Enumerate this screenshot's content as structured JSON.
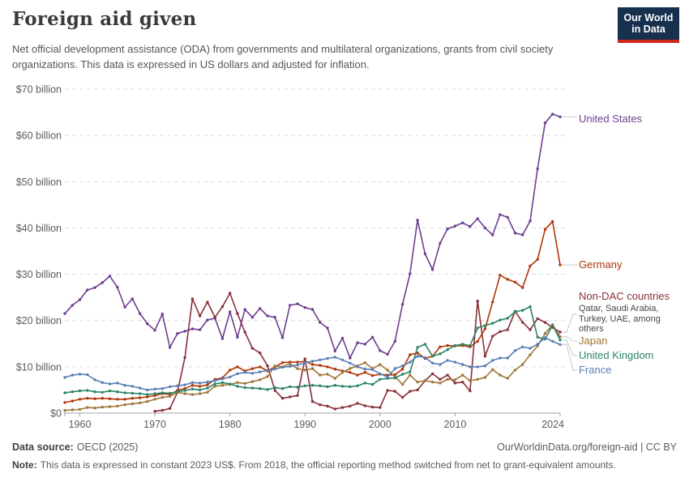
{
  "header": {
    "title": "Foreign aid given",
    "subtitle": "Net official development assistance (ODA) from governments and multilateral organizations, grants from civil society organizations. This data is expressed in US dollars and adjusted for inflation.",
    "logo": {
      "line1": "Our World",
      "line2": "in Data"
    }
  },
  "footer": {
    "source_label": "Data source:",
    "source_value": "OECD (2025)",
    "url_text": "OurWorldinData.org/foreign-aid | CC BY",
    "note_label": "Note:",
    "note_text": "This data is expressed in constant 2023 US$. From 2018, the official reporting method switched from net to grant-equivalent amounts."
  },
  "chart_data": {
    "type": "line",
    "title": "Foreign aid given",
    "xlabel": "",
    "ylabel": "",
    "ylim": [
      0,
      70
    ],
    "grid": true,
    "legend_position": "right-inline",
    "yticks": [
      0,
      10,
      20,
      30,
      40,
      50,
      60,
      70
    ],
    "ytick_labels": [
      "$0",
      "$10 billion",
      "$20 billion",
      "$30 billion",
      "$40 billion",
      "$50 billion",
      "$60 billion",
      "$70 billion"
    ],
    "xticks": [
      1960,
      1970,
      1980,
      1990,
      2000,
      2010,
      2024
    ],
    "x": [
      1958,
      1959,
      1960,
      1961,
      1962,
      1963,
      1964,
      1965,
      1966,
      1967,
      1968,
      1969,
      1970,
      1971,
      1972,
      1973,
      1974,
      1975,
      1976,
      1977,
      1978,
      1979,
      1980,
      1981,
      1982,
      1983,
      1984,
      1985,
      1986,
      1987,
      1988,
      1989,
      1990,
      1991,
      1992,
      1993,
      1994,
      1995,
      1996,
      1997,
      1998,
      1999,
      2000,
      2001,
      2002,
      2003,
      2004,
      2005,
      2006,
      2007,
      2008,
      2009,
      2010,
      2011,
      2012,
      2013,
      2014,
      2015,
      2016,
      2017,
      2018,
      2019,
      2020,
      2021,
      2022,
      2023,
      2024
    ],
    "value_unit": "billion US$ (constant 2023 prices)",
    "series": [
      {
        "name": "United States",
        "color": "#6D3E91",
        "values": [
          21.5,
          23.3,
          24.5,
          26.6,
          27.1,
          28.2,
          29.6,
          27.2,
          22.9,
          24.7,
          21.5,
          19.3,
          17.9,
          21.4,
          14.2,
          17.2,
          17.7,
          18.2,
          18.0,
          20.1,
          20.5,
          16.1,
          21.9,
          16.4,
          22.4,
          20.7,
          22.6,
          21.0,
          20.7,
          16.3,
          23.3,
          23.6,
          22.8,
          22.4,
          19.6,
          18.4,
          13.4,
          16.2,
          11.9,
          15.2,
          14.9,
          16.4,
          13.5,
          12.7,
          15.5,
          23.5,
          30.1,
          41.7,
          34.4,
          31.0,
          36.7,
          39.8,
          40.4,
          41.1,
          40.3,
          42.0,
          40.0,
          38.5,
          42.9,
          42.3,
          38.9,
          38.5,
          41.5,
          52.8,
          62.7,
          64.6,
          64.0
        ]
      },
      {
        "name": "Germany",
        "color": "#B13507",
        "values": [
          2.3,
          2.6,
          3.0,
          3.2,
          3.1,
          3.2,
          3.1,
          3.0,
          3.0,
          3.2,
          3.3,
          3.5,
          3.8,
          4.2,
          4.0,
          4.9,
          5.3,
          6.0,
          5.8,
          6.1,
          7.3,
          7.6,
          9.3,
          10.0,
          9.1,
          9.6,
          10.0,
          9.1,
          10.0,
          10.9,
          11.0,
          11.0,
          11.2,
          10.5,
          10.3,
          10.0,
          9.5,
          9.1,
          8.8,
          8.2,
          8.8,
          8.1,
          8.4,
          8.2,
          8.3,
          9.5,
          12.6,
          13.0,
          11.8,
          12.3,
          14.3,
          14.6,
          14.5,
          14.6,
          14.3,
          15.5,
          18.2,
          24.0,
          29.8,
          28.9,
          28.3,
          27.1,
          31.8,
          33.2,
          39.7,
          41.4,
          32.0
        ]
      },
      {
        "name": "Non-DAC countries",
        "color": "#883039",
        "annotation": "Qatar, Saudi Arabia, Turkey, UAE, among others",
        "values": [
          null,
          null,
          null,
          null,
          null,
          null,
          null,
          null,
          null,
          null,
          null,
          null,
          0.4,
          0.6,
          1.0,
          4.5,
          12.0,
          24.7,
          21.0,
          24.0,
          20.7,
          23.0,
          25.9,
          21.5,
          17.5,
          14.0,
          13.0,
          10.2,
          4.9,
          3.2,
          3.5,
          3.8,
          11.7,
          2.5,
          1.8,
          1.5,
          0.9,
          1.2,
          1.5,
          2.1,
          1.6,
          1.3,
          1.2,
          4.9,
          4.7,
          3.4,
          4.7,
          5.0,
          7.0,
          8.5,
          7.3,
          8.2,
          6.5,
          6.7,
          4.8,
          24.2,
          12.3,
          16.6,
          17.6,
          18.0,
          22.0,
          19.6,
          18.0,
          20.4,
          19.6,
          18.5,
          17.5
        ]
      },
      {
        "name": "Japan",
        "color": "#A0763B",
        "values": [
          0.6,
          0.7,
          0.8,
          1.2,
          1.1,
          1.3,
          1.4,
          1.5,
          1.8,
          2.0,
          2.2,
          2.5,
          3.0,
          3.4,
          3.6,
          4.5,
          4.2,
          4.0,
          4.2,
          4.5,
          5.8,
          6.0,
          6.2,
          6.6,
          6.4,
          6.8,
          7.2,
          7.9,
          10.2,
          10.0,
          10.7,
          9.6,
          9.3,
          9.6,
          8.2,
          8.4,
          7.5,
          8.8,
          9.6,
          10.2,
          10.9,
          9.6,
          10.5,
          9.3,
          7.9,
          6.2,
          8.2,
          6.7,
          7.0,
          6.7,
          6.5,
          7.3,
          7.2,
          8.2,
          7.0,
          7.3,
          7.7,
          9.4,
          8.2,
          7.5,
          9.3,
          10.5,
          12.6,
          14.5,
          17.2,
          19.1,
          16.5
        ]
      },
      {
        "name": "United Kingdom",
        "color": "#2C8465",
        "values": [
          4.4,
          4.6,
          4.8,
          4.9,
          4.6,
          4.5,
          4.8,
          4.6,
          4.4,
          4.3,
          4.2,
          4.0,
          4.2,
          4.4,
          4.3,
          4.6,
          4.9,
          5.2,
          5.0,
          5.4,
          6.3,
          6.6,
          6.3,
          5.8,
          5.5,
          5.4,
          5.3,
          5.1,
          5.5,
          5.3,
          5.7,
          5.6,
          5.9,
          6.0,
          5.9,
          5.7,
          6.0,
          5.8,
          5.7,
          5.9,
          6.5,
          6.2,
          7.3,
          7.5,
          7.6,
          8.4,
          8.9,
          14.2,
          14.9,
          12.3,
          12.8,
          13.7,
          14.6,
          14.9,
          14.6,
          18.4,
          18.9,
          19.4,
          20.1,
          20.5,
          21.9,
          22.2,
          23.0,
          16.4,
          16.0,
          19.0,
          15.8
        ]
      },
      {
        "name": "France",
        "color": "#577EB4",
        "values": [
          7.7,
          8.2,
          8.4,
          8.3,
          7.2,
          6.6,
          6.3,
          6.5,
          6.0,
          5.8,
          5.4,
          5.0,
          5.2,
          5.3,
          5.7,
          5.9,
          6.1,
          6.6,
          6.5,
          6.7,
          7.0,
          7.4,
          7.8,
          8.5,
          8.8,
          8.6,
          8.9,
          9.2,
          9.5,
          9.9,
          10.1,
          10.4,
          10.9,
          11.2,
          11.5,
          11.8,
          12.1,
          11.5,
          10.8,
          10.0,
          9.5,
          9.4,
          8.5,
          7.8,
          9.6,
          10.2,
          11.0,
          12.3,
          12.0,
          10.8,
          10.5,
          11.4,
          11.0,
          10.5,
          10.0,
          10.0,
          10.2,
          11.4,
          11.9,
          11.9,
          13.5,
          14.3,
          14.0,
          14.9,
          16.3,
          15.5,
          14.8
        ]
      }
    ]
  }
}
